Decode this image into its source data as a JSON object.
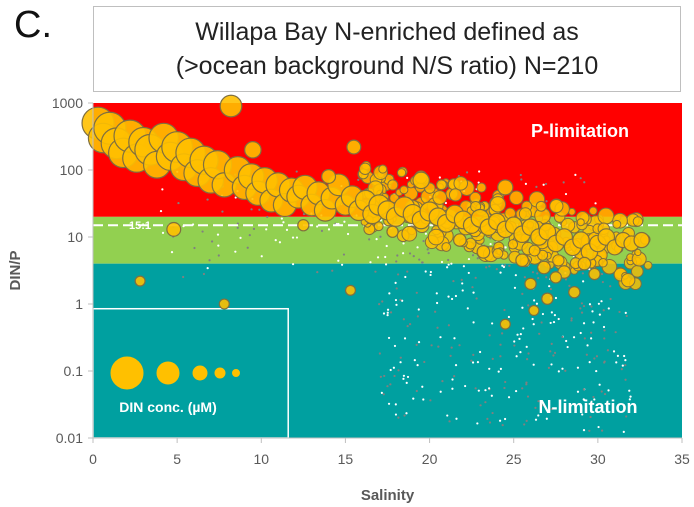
{
  "panel_letter": "C.",
  "title_lines": [
    "Willapa Bay N-enriched defined as",
    "(>ocean background  N/S ratio) N=210"
  ],
  "colors": {
    "p_limitation": "#ff0000",
    "balanced": "#92d050",
    "n_limitation": "#00a0a0",
    "bubble_fill": "#ffc000",
    "bubble_stroke": "#7f6f3f",
    "gray_points": "#808080",
    "white_points": "#ffffff"
  },
  "chart_data": {
    "type": "scatter",
    "xlabel": "Salinity",
    "ylabel": "DIN/P",
    "xlim": [
      0,
      35
    ],
    "ylim": [
      0.01,
      1000
    ],
    "y_scale": "log",
    "x_ticks": [
      "0",
      "5",
      "10",
      "15",
      "20",
      "25",
      "30",
      "35"
    ],
    "y_ticks": [
      "0.01",
      "0.1",
      "1",
      "10",
      "100",
      "1000"
    ],
    "regions": [
      {
        "label": "P-limitation",
        "y_from": 20,
        "y_to": 1000
      },
      {
        "label": "",
        "y_from": 4,
        "y_to": 20
      },
      {
        "label": "N-limitation",
        "y_from": 0.01,
        "y_to": 4
      }
    ],
    "reference_line": {
      "label": "15:1",
      "y": 15
    },
    "legend": {
      "title": "DIN conc. (µM)",
      "placement": "bottom-left"
    },
    "bubbles": [
      {
        "x": 0.3,
        "y": 500,
        "s": 1.0
      },
      {
        "x": 0.6,
        "y": 300,
        "s": 0.9
      },
      {
        "x": 1.0,
        "y": 420,
        "s": 1.0
      },
      {
        "x": 1.4,
        "y": 250,
        "s": 0.95
      },
      {
        "x": 1.8,
        "y": 180,
        "s": 0.9
      },
      {
        "x": 2.2,
        "y": 320,
        "s": 1.0
      },
      {
        "x": 2.6,
        "y": 150,
        "s": 0.85
      },
      {
        "x": 3.0,
        "y": 260,
        "s": 0.9
      },
      {
        "x": 3.4,
        "y": 200,
        "s": 0.95
      },
      {
        "x": 3.8,
        "y": 120,
        "s": 0.8
      },
      {
        "x": 4.2,
        "y": 300,
        "s": 0.9
      },
      {
        "x": 4.6,
        "y": 160,
        "s": 0.85
      },
      {
        "x": 5.0,
        "y": 220,
        "s": 0.95
      },
      {
        "x": 5.4,
        "y": 110,
        "s": 0.8
      },
      {
        "x": 5.8,
        "y": 180,
        "s": 0.9
      },
      {
        "x": 6.2,
        "y": 90,
        "s": 0.8
      },
      {
        "x": 6.6,
        "y": 140,
        "s": 0.85
      },
      {
        "x": 7.0,
        "y": 70,
        "s": 0.75
      },
      {
        "x": 7.4,
        "y": 120,
        "s": 0.85
      },
      {
        "x": 7.8,
        "y": 60,
        "s": 0.7
      },
      {
        "x": 8.2,
        "y": 900,
        "s": 0.6
      },
      {
        "x": 8.6,
        "y": 100,
        "s": 0.8
      },
      {
        "x": 9.0,
        "y": 55,
        "s": 0.7
      },
      {
        "x": 9.4,
        "y": 80,
        "s": 0.75
      },
      {
        "x": 9.8,
        "y": 45,
        "s": 0.7
      },
      {
        "x": 10.2,
        "y": 70,
        "s": 0.75
      },
      {
        "x": 10.6,
        "y": 35,
        "s": 0.65
      },
      {
        "x": 11.0,
        "y": 60,
        "s": 0.7
      },
      {
        "x": 11.4,
        "y": 30,
        "s": 0.65
      },
      {
        "x": 11.8,
        "y": 50,
        "s": 0.7
      },
      {
        "x": 12.2,
        "y": 40,
        "s": 0.65
      },
      {
        "x": 12.6,
        "y": 55,
        "s": 0.7
      },
      {
        "x": 13.0,
        "y": 30,
        "s": 0.6
      },
      {
        "x": 13.4,
        "y": 45,
        "s": 0.65
      },
      {
        "x": 13.8,
        "y": 25,
        "s": 0.6
      },
      {
        "x": 14.2,
        "y": 38,
        "s": 0.6
      },
      {
        "x": 14.6,
        "y": 60,
        "s": 0.6
      },
      {
        "x": 15.0,
        "y": 30,
        "s": 0.55
      },
      {
        "x": 15.4,
        "y": 40,
        "s": 0.6
      },
      {
        "x": 15.8,
        "y": 25,
        "s": 0.55
      },
      {
        "x": 16.2,
        "y": 35,
        "s": 0.55
      },
      {
        "x": 16.6,
        "y": 22,
        "s": 0.5
      },
      {
        "x": 17.0,
        "y": 30,
        "s": 0.55
      },
      {
        "x": 17.5,
        "y": 25,
        "s": 0.5
      },
      {
        "x": 18.0,
        "y": 20,
        "s": 0.5
      },
      {
        "x": 18.5,
        "y": 28,
        "s": 0.55
      },
      {
        "x": 19.0,
        "y": 22,
        "s": 0.5
      },
      {
        "x": 19.5,
        "y": 18,
        "s": 0.45
      },
      {
        "x": 20.0,
        "y": 24,
        "s": 0.5
      },
      {
        "x": 20.5,
        "y": 20,
        "s": 0.45
      },
      {
        "x": 21.0,
        "y": 16,
        "s": 0.45
      },
      {
        "x": 21.5,
        "y": 22,
        "s": 0.45
      },
      {
        "x": 22.0,
        "y": 18,
        "s": 0.45
      },
      {
        "x": 22.5,
        "y": 15,
        "s": 0.4
      },
      {
        "x": 23.0,
        "y": 19,
        "s": 0.45
      },
      {
        "x": 23.5,
        "y": 14,
        "s": 0.4
      },
      {
        "x": 24.0,
        "y": 17,
        "s": 0.4
      },
      {
        "x": 24.5,
        "y": 13,
        "s": 0.4
      },
      {
        "x": 25.0,
        "y": 15,
        "s": 0.4
      },
      {
        "x": 25.5,
        "y": 11,
        "s": 0.4
      },
      {
        "x": 26.0,
        "y": 14,
        "s": 0.4
      },
      {
        "x": 26.5,
        "y": 10,
        "s": 0.4
      },
      {
        "x": 27.0,
        "y": 12,
        "s": 0.4
      },
      {
        "x": 27.5,
        "y": 8,
        "s": 0.4
      },
      {
        "x": 28.0,
        "y": 10,
        "s": 0.4
      },
      {
        "x": 28.5,
        "y": 7,
        "s": 0.4
      },
      {
        "x": 29.0,
        "y": 9,
        "s": 0.4
      },
      {
        "x": 29.5,
        "y": 6,
        "s": 0.4
      },
      {
        "x": 30.0,
        "y": 8,
        "s": 0.4
      },
      {
        "x": 30.5,
        "y": 10,
        "s": 0.4
      },
      {
        "x": 31.0,
        "y": 7,
        "s": 0.35
      },
      {
        "x": 31.5,
        "y": 9,
        "s": 0.35
      },
      {
        "x": 32.0,
        "y": 8,
        "s": 0.35
      },
      {
        "x": 32.6,
        "y": 9,
        "s": 0.35
      },
      {
        "x": 4.8,
        "y": 13,
        "s": 0.3
      },
      {
        "x": 2.8,
        "y": 2.2,
        "s": 0.15
      },
      {
        "x": 7.8,
        "y": 1.0,
        "s": 0.15
      },
      {
        "x": 15.3,
        "y": 1.6,
        "s": 0.15
      },
      {
        "x": 26.0,
        "y": 2.0,
        "s": 0.2
      },
      {
        "x": 27.0,
        "y": 1.2,
        "s": 0.2
      },
      {
        "x": 28.0,
        "y": 3.0,
        "s": 0.25
      },
      {
        "x": 25.5,
        "y": 4.5,
        "s": 0.25
      },
      {
        "x": 26.8,
        "y": 3.5,
        "s": 0.25
      },
      {
        "x": 27.5,
        "y": 2.5,
        "s": 0.2
      },
      {
        "x": 28.6,
        "y": 1.5,
        "s": 0.2
      },
      {
        "x": 29.2,
        "y": 4.0,
        "s": 0.25
      },
      {
        "x": 24.5,
        "y": 0.5,
        "s": 0.15
      },
      {
        "x": 26.2,
        "y": 0.8,
        "s": 0.15
      },
      {
        "x": 29.8,
        "y": 2.8,
        "s": 0.2
      },
      {
        "x": 14.0,
        "y": 80,
        "s": 0.3
      },
      {
        "x": 12.5,
        "y": 15,
        "s": 0.2
      },
      {
        "x": 17.8,
        "y": 12,
        "s": 0.2
      },
      {
        "x": 21.8,
        "y": 9,
        "s": 0.25
      },
      {
        "x": 23.2,
        "y": 6,
        "s": 0.25
      },
      {
        "x": 9.5,
        "y": 200,
        "s": 0.4
      },
      {
        "x": 15.5,
        "y": 220,
        "s": 0.3
      },
      {
        "x": 24.5,
        "y": 55,
        "s": 0.35
      },
      {
        "x": 19.5,
        "y": 70,
        "s": 0.4
      }
    ],
    "legend_bubbles": [
      1.0,
      0.75,
      0.55,
      0.4,
      0.28
    ]
  }
}
